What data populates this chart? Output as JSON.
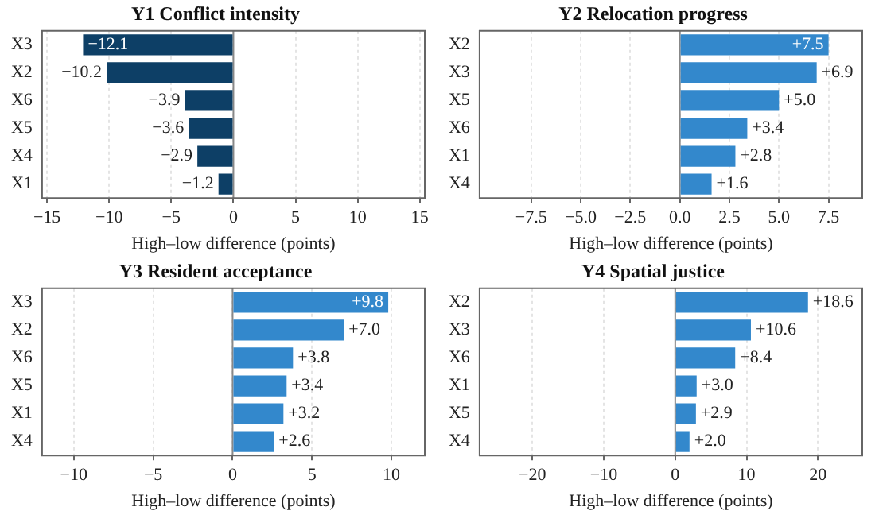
{
  "chart_data": [
    {
      "type": "bar",
      "orientation": "horizontal",
      "title": "Y1 Conflict intensity",
      "xlabel": "High–low difference (points)",
      "categories": [
        "X3",
        "X2",
        "X6",
        "X5",
        "X4",
        "X1"
      ],
      "values": [
        -12.1,
        -10.2,
        -3.9,
        -3.6,
        -2.9,
        -1.2
      ],
      "value_labels": [
        "−12.1",
        "−10.2",
        "−3.9",
        "−3.6",
        "−2.9",
        "−1.2"
      ],
      "color": "#0d3f66",
      "xlim": [
        -15.4,
        15.4
      ],
      "xticks": [
        {
          "value": -15,
          "label": "−15"
        },
        {
          "value": -10,
          "label": "−10"
        },
        {
          "value": -5,
          "label": "−5"
        },
        0,
        5,
        10,
        15
      ],
      "grid": "x",
      "ref_lines": [
        {
          "axis": "x",
          "value": 0,
          "color": "#888888"
        }
      ]
    },
    {
      "type": "bar",
      "orientation": "horizontal",
      "title": "Y2 Relocation progress",
      "xlabel": "High–low difference (points)",
      "categories": [
        "X2",
        "X3",
        "X5",
        "X6",
        "X1",
        "X4"
      ],
      "values": [
        7.5,
        6.9,
        5.0,
        3.4,
        2.8,
        1.6
      ],
      "value_labels": [
        "+7.5",
        "+6.9",
        "+5.0",
        "+3.4",
        "+2.8",
        "+1.6"
      ],
      "color": "#3388cc",
      "xlim": [
        -10.1,
        9.2
      ],
      "xticks": [
        {
          "value": -7.5,
          "label": "−7.5"
        },
        {
          "value": -5,
          "label": "−5.0"
        },
        {
          "value": -2.5,
          "label": "−2.5"
        },
        {
          "value": 0,
          "label": "0.0"
        },
        2.5,
        {
          "value": 5,
          "label": "5.0"
        },
        7.5
      ],
      "grid": "x",
      "ref_lines": [
        {
          "axis": "x",
          "value": 0,
          "color": "#888888"
        }
      ]
    },
    {
      "type": "bar",
      "orientation": "horizontal",
      "title": "Y3 Resident acceptance",
      "xlabel": "High–low difference (points)",
      "categories": [
        "X3",
        "X2",
        "X6",
        "X5",
        "X1",
        "X4"
      ],
      "values": [
        9.8,
        7.0,
        3.8,
        3.4,
        3.2,
        2.6
      ],
      "value_labels": [
        "+9.8",
        "+7.0",
        "+3.8",
        "+3.4",
        "+3.2",
        "+2.6"
      ],
      "color": "#3388cc",
      "xlim": [
        -12.0,
        12.1
      ],
      "xticks": [
        {
          "value": -10,
          "label": "−10"
        },
        {
          "value": -5,
          "label": "−5"
        },
        0,
        5,
        10
      ],
      "grid": "x",
      "ref_lines": [
        {
          "axis": "x",
          "value": 0,
          "color": "#888888"
        }
      ]
    },
    {
      "type": "bar",
      "orientation": "horizontal",
      "title": "Y4 Spatial justice",
      "xlabel": "High–low difference (points)",
      "categories": [
        "X2",
        "X3",
        "X6",
        "X1",
        "X5",
        "X4"
      ],
      "values": [
        18.6,
        10.6,
        8.4,
        3.0,
        2.9,
        2.0
      ],
      "value_labels": [
        "+18.6",
        "+10.6",
        "+8.4",
        "+3.0",
        "+2.9",
        "+2.0"
      ],
      "color": "#3388cc",
      "xlim": [
        -27.4,
        26.2
      ],
      "xticks": [
        {
          "value": -20,
          "label": "−20"
        },
        {
          "value": -10,
          "label": "−10"
        },
        0,
        10,
        20
      ],
      "grid": "x",
      "ref_lines": [
        {
          "axis": "x",
          "value": 0,
          "color": "#888888"
        }
      ]
    }
  ]
}
